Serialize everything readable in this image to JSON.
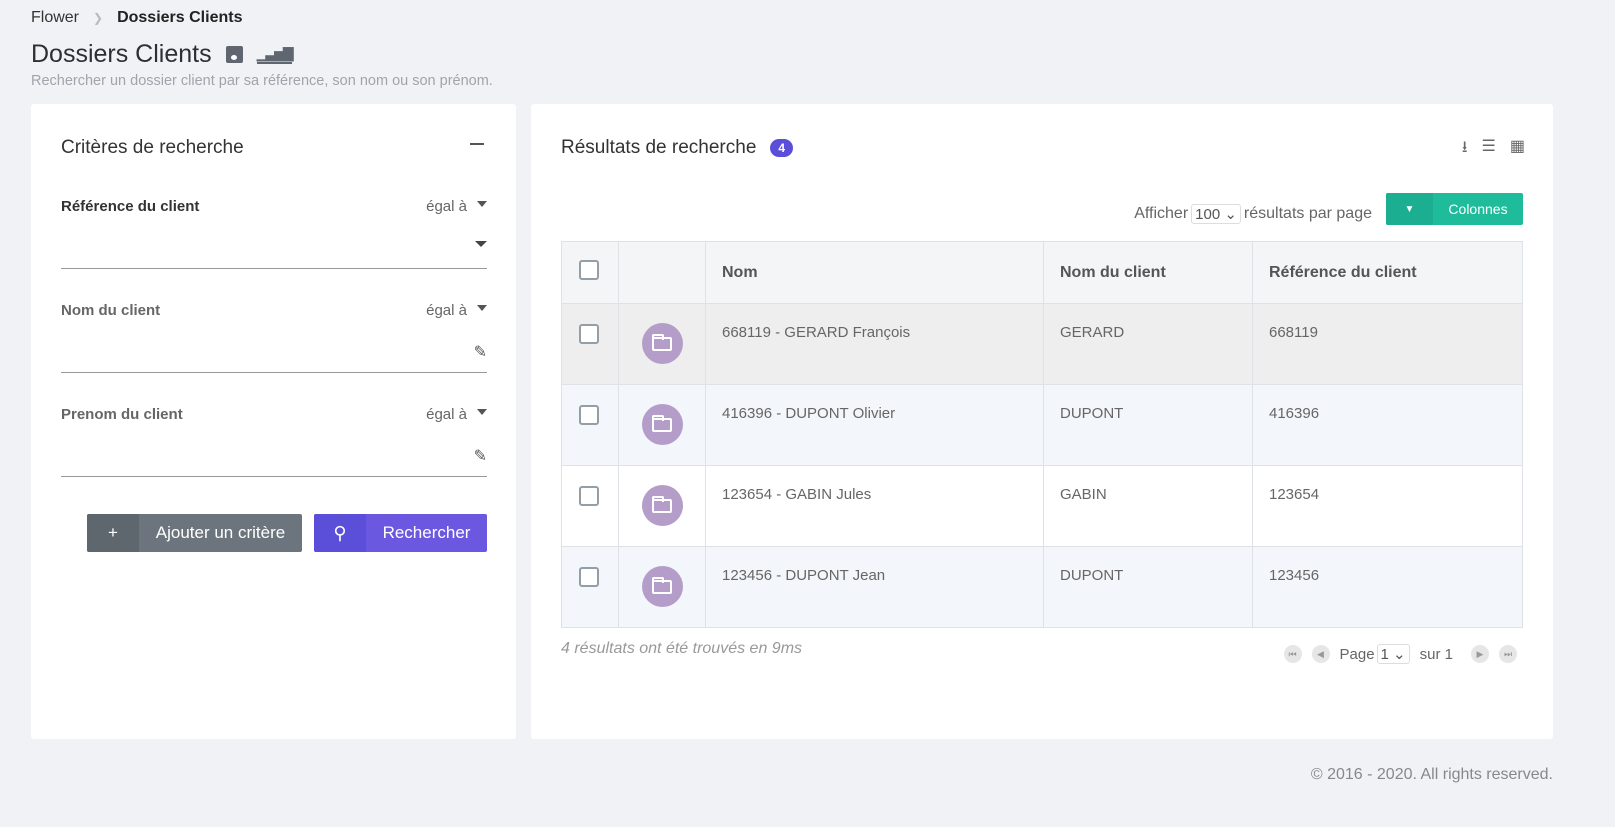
{
  "breadcrumb": {
    "root": "Flower",
    "current": "Dossiers Clients"
  },
  "header": {
    "title": "Dossiers Clients",
    "subtitle": "Rechercher un dossier client par sa référence, son nom ou son prénom.",
    "icons": [
      "save-icon",
      "chart-icon"
    ]
  },
  "criteria": {
    "title": "Critères de recherche",
    "items": [
      {
        "label": "Référence du client",
        "operator": "égal à",
        "input": "dropdown"
      },
      {
        "label": "Nom du client",
        "operator": "égal à",
        "input": "edit"
      },
      {
        "label": "Prenom du client",
        "operator": "égal à",
        "input": "edit"
      }
    ],
    "add_label": "Ajouter un critère",
    "search_label": "Rechercher",
    "add_icon": "+"
  },
  "results": {
    "title": "Résultats de recherche",
    "count": "4",
    "show_prefix": "Afficher",
    "page_size": "100",
    "show_suffix": "résultats par page",
    "columns_label": "Colonnes",
    "headers": [
      "Nom",
      "Nom du client",
      "Référence du client"
    ],
    "rows": [
      [
        "668119 - GERARD François",
        "GERARD",
        "668119"
      ],
      [
        "416396 - DUPONT Olivier",
        "DUPONT",
        "416396"
      ],
      [
        "123654 - GABIN Jules",
        "GABIN",
        "123654"
      ],
      [
        "123456 - DUPONT Jean",
        "DUPONT",
        "123456"
      ]
    ],
    "summary": "4 résultats ont été trouvés en 9ms",
    "page_label": "Page",
    "page": "1",
    "of_label": "sur 1"
  },
  "footer": "© 2016 - 2020. All rights reserved.",
  "colors": {
    "accent": "#5b4fd9",
    "teal": "#1fbc9c",
    "grey_button": "#6c757d",
    "folder": "#b49ec9"
  }
}
